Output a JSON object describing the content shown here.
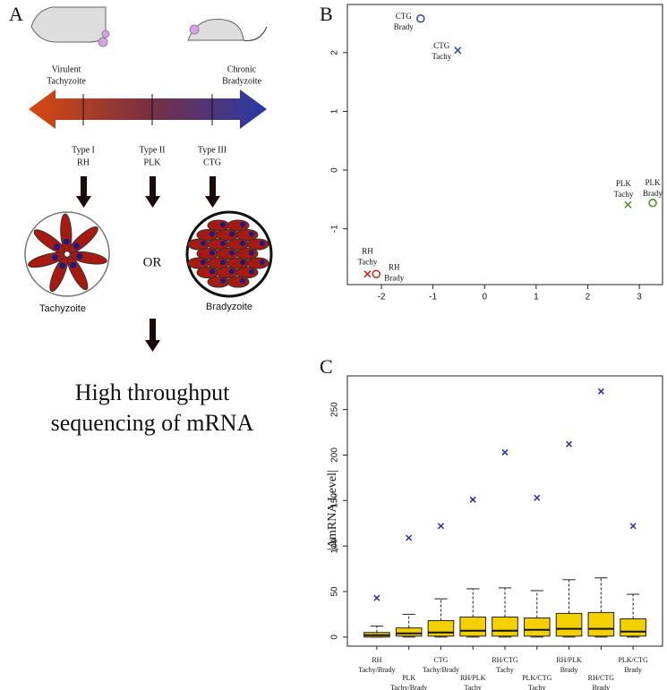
{
  "panel_a": {
    "label": "A",
    "left_stage": [
      "Virulent",
      "Tachyzoite"
    ],
    "right_stage": [
      "Chronic",
      "Bradyzoite"
    ],
    "types": [
      [
        "Type I",
        "RH"
      ],
      [
        "Type II",
        "PLK"
      ],
      [
        "Type III",
        "CTG"
      ]
    ],
    "or": "OR",
    "tachy": "Tachyzoite",
    "brady": "Bradyzoite",
    "conclusion": [
      "High throughput",
      "sequencing of mRNA"
    ]
  },
  "chart_data": [
    {
      "type": "scatter",
      "panel_label": "B",
      "xlim": [
        -2.66,
        3.45
      ],
      "ylim": [
        -1.95,
        2.82
      ],
      "xticks": [
        -2,
        -1,
        0,
        1,
        2,
        3
      ],
      "yticks": [
        -1,
        0,
        1,
        2
      ],
      "series": [
        {
          "label": [
            "CTG",
            "Brady"
          ],
          "marker": "o",
          "color": "#2a4f9a",
          "x": [
            -1.24
          ],
          "values": [
            2.58
          ]
        },
        {
          "label": [
            "CTG",
            "Tachy"
          ],
          "marker": "x",
          "color": "#2a4f9a",
          "x": [
            -0.52
          ],
          "values": [
            2.04
          ]
        },
        {
          "label": [
            "PLK",
            "Tachy"
          ],
          "marker": "x",
          "color": "#4a8a1a",
          "x": [
            2.78
          ],
          "values": [
            -0.59
          ]
        },
        {
          "label": [
            "PLK",
            "Brady"
          ],
          "marker": "o",
          "color": "#4a8a1a",
          "x": [
            3.26
          ],
          "values": [
            -0.56
          ]
        },
        {
          "label": [
            "RH",
            "Tachy"
          ],
          "marker": "x",
          "color": "#c0201a",
          "x": [
            -2.27
          ],
          "values": [
            -1.77
          ]
        },
        {
          "label": [
            "RH",
            "Brady"
          ],
          "marker": "o",
          "color": "#c0201a",
          "x": [
            -2.1
          ],
          "values": [
            -1.77
          ]
        }
      ]
    },
    {
      "type": "box",
      "panel_label": "C",
      "ylabel": "|ΔmRNA Level|",
      "ylim": [
        -10,
        287
      ],
      "yticks": [
        0,
        50,
        100,
        150,
        200,
        250
      ],
      "box_color": "#f5d000",
      "outlier_color": "#2a2aa8",
      "categories": [
        [
          "RH",
          "Tachy/Brady"
        ],
        [
          "PLK",
          "Tachy/Brady"
        ],
        [
          "CTG",
          "Tachy/Brady"
        ],
        [
          "RH/PLK",
          "Tachy"
        ],
        [
          "RH/CTG",
          "Tachy"
        ],
        [
          "PLK/CTG",
          "Tachy"
        ],
        [
          "RH/PLK",
          "Brady"
        ],
        [
          "RH/CTG",
          "Brady"
        ],
        [
          "PLK/CTG",
          "Brady"
        ]
      ],
      "boxes": [
        [
          0,
          0,
          2,
          5,
          12
        ],
        [
          0,
          1,
          4,
          10,
          25
        ],
        [
          0,
          1,
          5,
          18,
          42
        ],
        [
          0,
          1,
          7,
          22,
          53
        ],
        [
          0,
          1,
          7,
          22,
          54
        ],
        [
          0,
          1,
          8,
          21,
          51
        ],
        [
          0,
          1,
          9,
          26,
          63
        ],
        [
          0,
          1,
          9,
          27,
          65
        ],
        [
          0,
          1,
          6,
          20,
          47
        ]
      ],
      "outliers": [
        43,
        109,
        122,
        151,
        203,
        153,
        212,
        270,
        122
      ]
    }
  ]
}
